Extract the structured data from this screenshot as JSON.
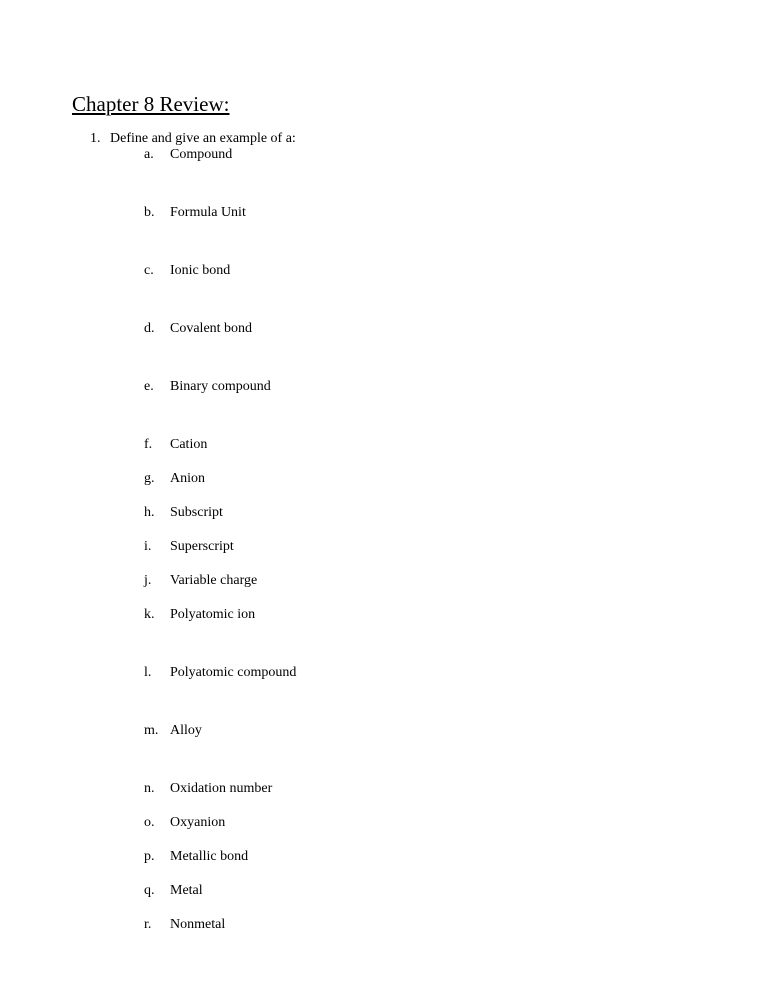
{
  "title": "Chapter 8 Review:",
  "question": {
    "number": "1.",
    "text": "Define and give an example of a:"
  },
  "items": {
    "a": {
      "letter": "a.",
      "text": "Compound"
    },
    "b": {
      "letter": "b.",
      "text": "Formula Unit"
    },
    "c": {
      "letter": "c.",
      "text": "Ionic bond"
    },
    "d": {
      "letter": "d.",
      "text": "Covalent bond"
    },
    "e": {
      "letter": "e.",
      "text": "Binary compound"
    },
    "f": {
      "letter": "f.",
      "text": "Cation"
    },
    "g": {
      "letter": "g.",
      "text": "Anion"
    },
    "h": {
      "letter": "h.",
      "text": "Subscript"
    },
    "i": {
      "letter": "i.",
      "text": "Superscript"
    },
    "j": {
      "letter": "j.",
      "text": "Variable charge"
    },
    "k": {
      "letter": "k.",
      "text": "Polyatomic ion"
    },
    "l": {
      "letter": "l.",
      "text": "Polyatomic compound"
    },
    "m": {
      "letter": "m.",
      "text": "Alloy"
    },
    "n": {
      "letter": "n.",
      "text": "Oxidation number"
    },
    "o": {
      "letter": "o.",
      "text": "Oxyanion"
    },
    "p": {
      "letter": "p.",
      "text": "Metallic bond"
    },
    "q": {
      "letter": "q.",
      "text": "Metal"
    },
    "r": {
      "letter": "r.",
      "text": "Nonmetal"
    }
  },
  "styling": {
    "page_background": "#ffffff",
    "text_color": "#000000",
    "title_fontsize": 21,
    "body_fontsize": 14,
    "font_family": "Times New Roman"
  }
}
